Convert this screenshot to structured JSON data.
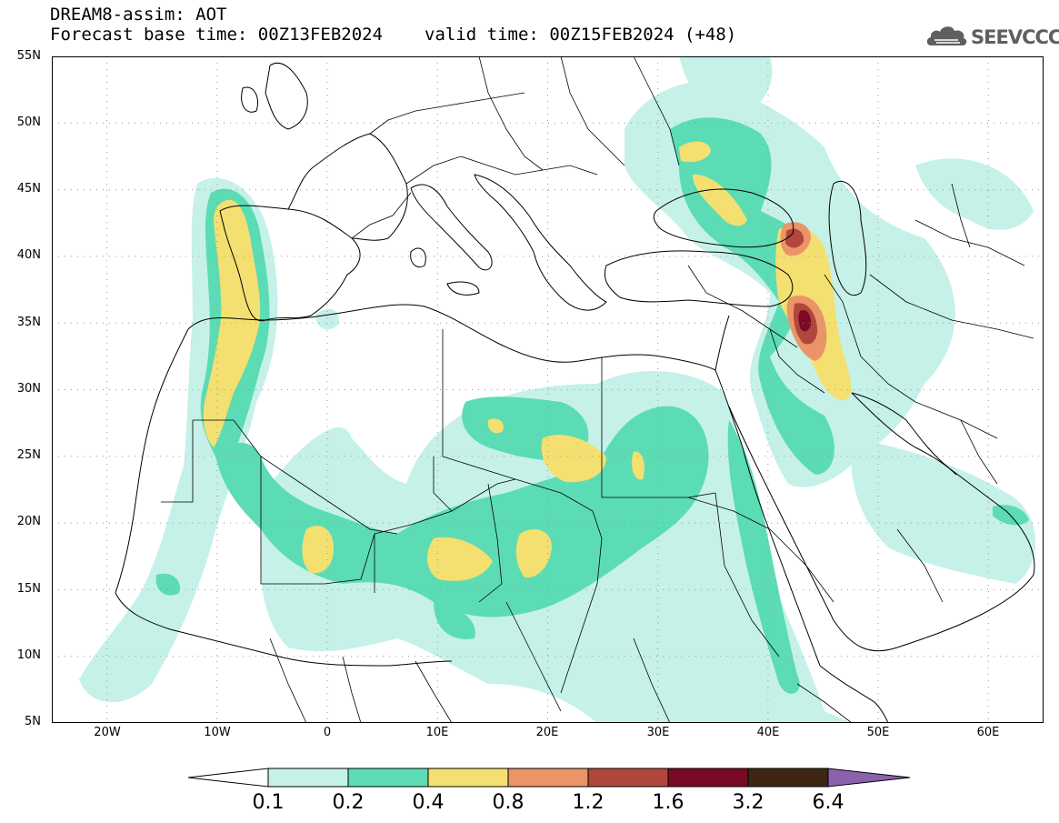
{
  "header": {
    "title": "DREAM8-assim: AOT",
    "base_time": "Forecast base time: 00Z13FEB2024",
    "valid_time": "valid time: 00Z15FEB2024 (+48)"
  },
  "logo": {
    "text": "SEEVCCC",
    "icon": "cloud-logo-icon"
  },
  "map": {
    "lat_labels": [
      "55N",
      "50N",
      "45N",
      "40N",
      "35N",
      "30N",
      "25N",
      "20N",
      "15N",
      "10N",
      "5N"
    ],
    "lon_labels": [
      "20W",
      "10W",
      "0",
      "10E",
      "20E",
      "30E",
      "40E",
      "50E",
      "60E"
    ],
    "lon_range": [
      -25,
      65
    ],
    "lat_range": [
      5,
      55
    ],
    "grid": "dotted"
  },
  "colorbar": {
    "labels": [
      "0.1",
      "0.2",
      "0.4",
      "0.8",
      "1.2",
      "1.6",
      "3.2",
      "6.4"
    ],
    "colors": [
      "#ffffff",
      "#c5f1e8",
      "#5cdcb4",
      "#f3e070",
      "#ea9468",
      "#b0463c",
      "#7a0a26",
      "#3e2614",
      "#8a62ac"
    ]
  },
  "colors": {
    "aot_0_1": "#c5f1e8",
    "aot_0_2": "#5cdcb4",
    "aot_0_4": "#f3e070",
    "aot_0_8": "#ea9468",
    "aot_1_2": "#b0463c",
    "aot_1_6": "#7a0a26"
  }
}
